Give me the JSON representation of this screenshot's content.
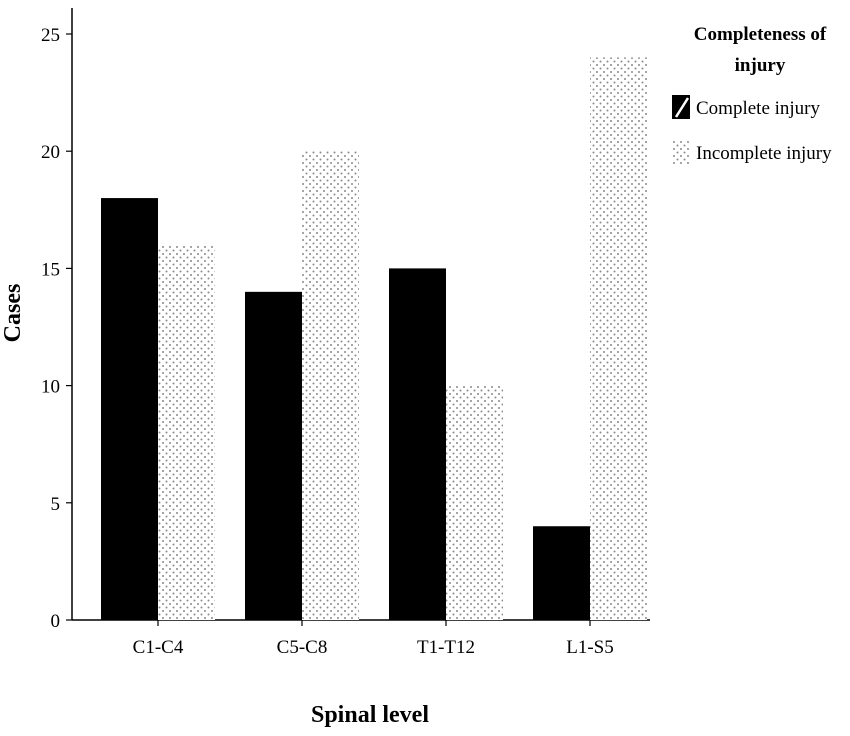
{
  "chart_data": {
    "type": "bar",
    "title": "",
    "xlabel": "Spinal level",
    "ylabel": "Cases",
    "categories": [
      "C1-C4",
      "C5-C8",
      "T1-T12",
      "L1-S5"
    ],
    "series": [
      {
        "name": "Complete injury",
        "values": [
          18,
          14,
          15,
          4
        ],
        "color": "#000000",
        "pattern": "solid"
      },
      {
        "name": "Incomplete injury",
        "values": [
          16,
          20,
          10,
          24
        ],
        "color": "#9a9a9a",
        "pattern": "dots"
      }
    ],
    "ylim": [
      0,
      25
    ],
    "yticks": [
      0,
      5,
      10,
      15,
      20,
      25
    ],
    "grid": false,
    "legend": {
      "title": "Completeness of injury",
      "placement": "top-right"
    }
  }
}
